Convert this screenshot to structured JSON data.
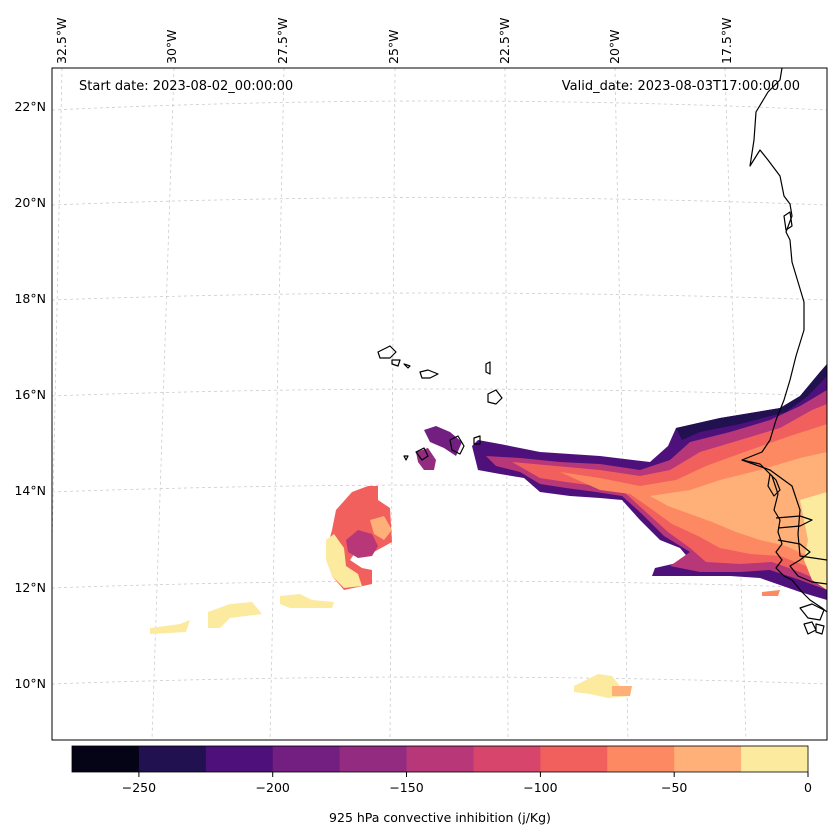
{
  "map": {
    "start_date": "Start date: 2023-08-02_00:00:00",
    "valid_date": "Valid_date: 2023-08-03T17:00:00.00",
    "lon_labels": [
      "32.5°W",
      "30°W",
      "27.5°W",
      "25°W",
      "22.5°W",
      "20°W",
      "17.5°W"
    ],
    "lat_labels": [
      "22°N",
      "20°N",
      "18°N",
      "16°N",
      "14°N",
      "12°N",
      "10°N"
    ],
    "colorbar": {
      "label": "925 hPa convective inhibition (j/Kg)",
      "ticks": [
        "−250",
        "−200",
        "−150",
        "−100",
        "−50",
        "0"
      ],
      "colors": [
        "#050416",
        "#221150",
        "#4e107b",
        "#721f81",
        "#932b80",
        "#b73779",
        "#d8456c",
        "#f1605d",
        "#fc8961",
        "#feb078",
        "#fcea9f"
      ]
    }
  }
}
